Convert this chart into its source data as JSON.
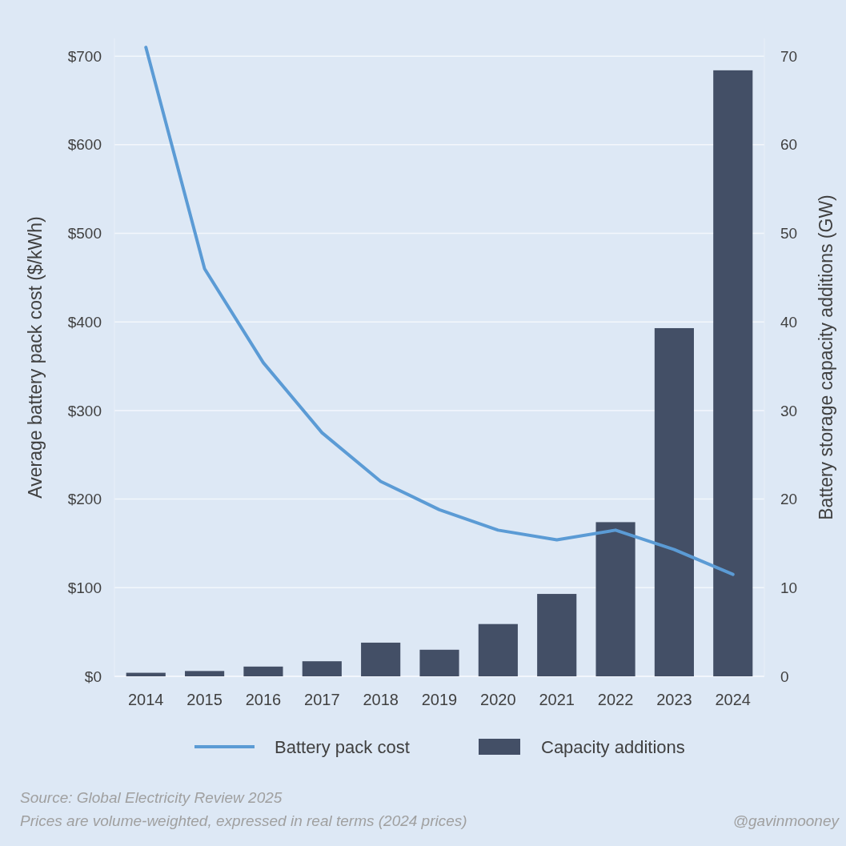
{
  "chart_data": {
    "type": "bar",
    "categories": [
      "2014",
      "2015",
      "2016",
      "2017",
      "2018",
      "2019",
      "2020",
      "2021",
      "2022",
      "2023",
      "2024"
    ],
    "series": [
      {
        "name": "Battery pack cost",
        "type": "line",
        "color": "#5b9bd5",
        "values": [
          710,
          460,
          354,
          275,
          220,
          188,
          165,
          154,
          165,
          143,
          115
        ]
      },
      {
        "name": "Capacity additions",
        "axis": "y2",
        "color": "#434f66",
        "values": [
          0.4,
          0.6,
          1.1,
          1.7,
          3.8,
          3.0,
          5.9,
          9.3,
          17.4,
          39.3,
          68.4
        ]
      }
    ],
    "ylabel": "Average battery pack cost ($/kWh)",
    "y2label": "Battery storage capacity additions (GW)",
    "ylim": [
      0,
      720
    ],
    "yticks": [
      {
        "value": 0,
        "label": "$0"
      },
      {
        "value": 100,
        "label": "$100"
      },
      {
        "value": 200,
        "label": "$200"
      },
      {
        "value": 300,
        "label": "$300"
      },
      {
        "value": 400,
        "label": "$400"
      },
      {
        "value": 500,
        "label": "$500"
      },
      {
        "value": 600,
        "label": "$600"
      },
      {
        "value": 700,
        "label": "$700"
      }
    ],
    "y2lim": [
      0,
      72
    ],
    "y2ticks": [
      0,
      10,
      20,
      30,
      40,
      50,
      60,
      70
    ],
    "grid": "y",
    "legend": "bottom",
    "line_style": "solid",
    "marker": "none",
    "annotations": [
      "Source: Global Electricity Review 2025",
      "Prices are volume-weighted, expressed in real terms (2024 prices)",
      "@gavinmooney"
    ]
  }
}
